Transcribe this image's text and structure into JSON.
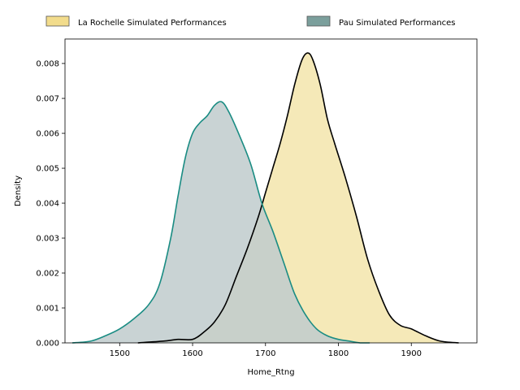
{
  "chart_data": {
    "type": "area",
    "xlabel": "Home_Rtng",
    "ylabel": "Density",
    "xlim": [
      1425,
      1990
    ],
    "ylim": [
      0,
      0.0087
    ],
    "xticks": [
      1500,
      1600,
      1700,
      1800,
      1900
    ],
    "yticks": [
      0.0,
      0.001,
      0.002,
      0.003,
      0.004,
      0.005,
      0.006,
      0.007,
      0.008
    ],
    "ytick_labels": [
      "0.000",
      "0.001",
      "0.002",
      "0.003",
      "0.004",
      "0.005",
      "0.006",
      "0.007",
      "0.008"
    ],
    "grid": false,
    "legend_position": "top-center, above plot",
    "series": [
      {
        "name": "La Rochelle Simulated Performances",
        "fill": "#f5e9b8",
        "legend_fill": "#f2dc8c",
        "line": "#000000",
        "x": [
          1525,
          1560,
          1580,
          1600,
          1615,
          1630,
          1645,
          1660,
          1675,
          1690,
          1700,
          1710,
          1720,
          1730,
          1740,
          1750,
          1758,
          1765,
          1775,
          1785,
          1795,
          1810,
          1825,
          1840,
          1855,
          1870,
          1885,
          1900,
          1920,
          1940,
          1965
        ],
        "y": [
          0.0,
          5e-05,
          0.0001,
          0.0001,
          0.0003,
          0.0006,
          0.0011,
          0.0019,
          0.0027,
          0.0036,
          0.0043,
          0.005,
          0.0057,
          0.0065,
          0.0074,
          0.0081,
          0.0083,
          0.0081,
          0.0074,
          0.0064,
          0.0057,
          0.0047,
          0.0036,
          0.0024,
          0.0015,
          0.0008,
          0.0005,
          0.0004,
          0.0002,
          5e-05,
          0.0
        ]
      },
      {
        "name": "Pau Simulated Performances",
        "fill": "#bfcbcd",
        "legend_fill": "#7b9f9c",
        "line": "#1a8c83",
        "x": [
          1435,
          1460,
          1480,
          1500,
          1520,
          1540,
          1555,
          1570,
          1580,
          1590,
          1600,
          1610,
          1620,
          1630,
          1640,
          1650,
          1665,
          1680,
          1695,
          1710,
          1725,
          1740,
          1755,
          1770,
          1785,
          1800,
          1815,
          1830,
          1843
        ],
        "y": [
          0.0,
          5e-05,
          0.0002,
          0.0004,
          0.0007,
          0.0011,
          0.0017,
          0.003,
          0.0042,
          0.0053,
          0.006,
          0.0063,
          0.0065,
          0.0068,
          0.0069,
          0.0066,
          0.0059,
          0.0051,
          0.004,
          0.0032,
          0.0023,
          0.0014,
          0.0008,
          0.0004,
          0.0002,
          0.0001,
          5e-05,
          0.0,
          0.0
        ]
      }
    ]
  }
}
